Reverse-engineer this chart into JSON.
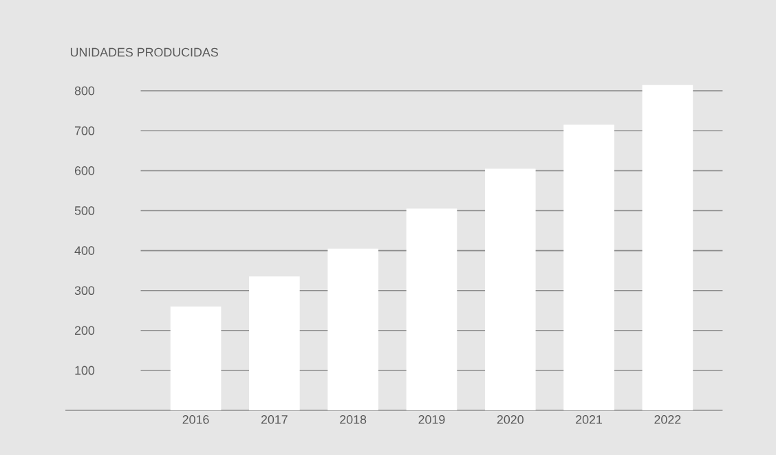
{
  "chart_data": {
    "type": "bar",
    "ylabel": "UNIDADES PRODUCIDAS",
    "categories": [
      "2016",
      "2017",
      "2018",
      "2019",
      "2020",
      "2021",
      "2022"
    ],
    "values": [
      260,
      335,
      405,
      505,
      605,
      715,
      815
    ],
    "color": "#ffffff",
    "ylim": [
      0,
      815
    ],
    "yticks": [
      100,
      200,
      300,
      400,
      500,
      600,
      700,
      800
    ],
    "grid": "y"
  }
}
